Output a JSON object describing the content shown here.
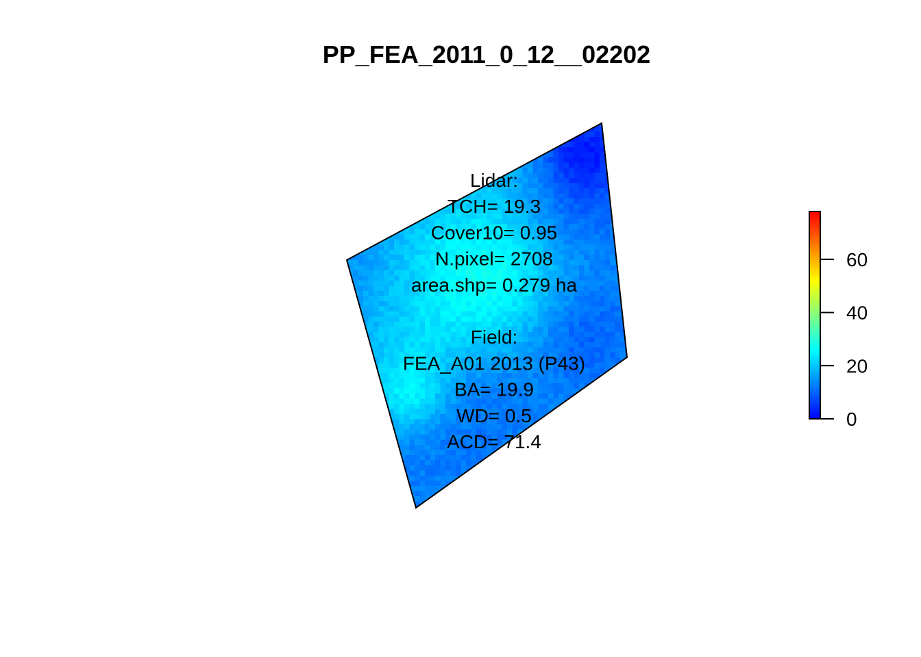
{
  "chart_data": {
    "type": "heatmap",
    "title": "PP_FEA_2011_0_12__02202",
    "xlabel": "",
    "ylabel": "",
    "grid": false,
    "legend": "right",
    "colorbar": {
      "min": 0,
      "max": 78,
      "ticks": [
        0,
        20,
        40,
        60
      ],
      "tick_labels": [
        "0",
        "20",
        "40",
        "60"
      ],
      "colors": [
        "#0000ff",
        "#0080ff",
        "#00ffff",
        "#80ff80",
        "#ffff00",
        "#ff8000",
        "#ff0000"
      ]
    },
    "raster_note": "canopy height values mostly between ~5 and ~30",
    "annotation_lines": [
      "Lidar:",
      "TCH= 19.3",
      "Cover10= 0.95",
      "N.pixel= 2708",
      "area.shp= 0.279 ha",
      "",
      "Field:",
      "FEA_A01 2013 (P43)",
      "BA= 19.9",
      "WD= 0.5",
      "ACD= 71.4"
    ]
  }
}
